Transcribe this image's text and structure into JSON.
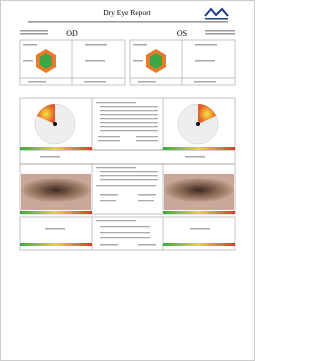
{
  "header": {
    "title": "Dry Eye Report"
  },
  "eyes": {
    "left": "OD",
    "right": "OS"
  }
}
